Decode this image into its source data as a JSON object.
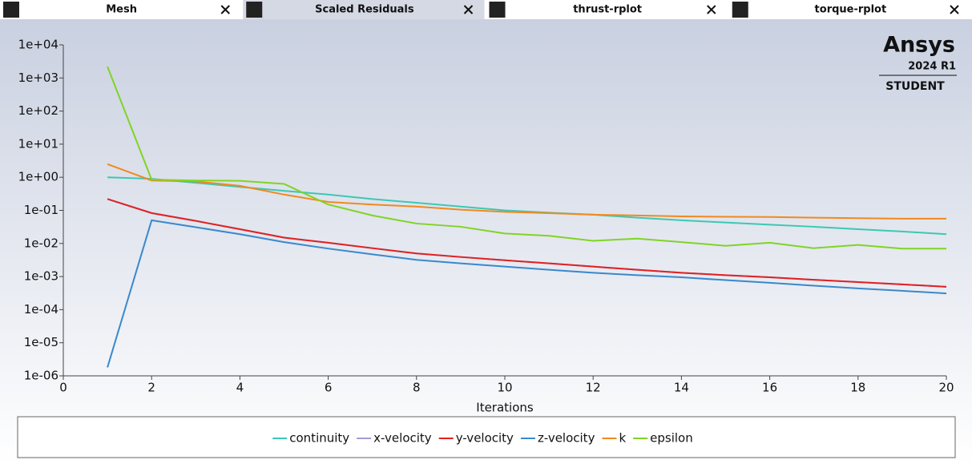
{
  "tabs": [
    {
      "label": "Mesh"
    },
    {
      "label": "Scaled Residuals"
    },
    {
      "label": "thrust-rplot"
    },
    {
      "label": "torque-rplot"
    }
  ],
  "logo": {
    "brand": "Ansys",
    "version": "2024 R1",
    "edition": "STUDENT"
  },
  "chart_data": {
    "type": "line",
    "x_label": "Iterations",
    "log_y": true,
    "x": [
      1,
      2,
      3,
      4,
      5,
      6,
      7,
      8,
      9,
      10,
      11,
      12,
      13,
      14,
      15,
      16,
      17,
      18,
      19,
      20
    ],
    "xlim": [
      0,
      20
    ],
    "xticks": [
      0,
      2,
      4,
      6,
      8,
      10,
      12,
      14,
      16,
      18,
      20
    ],
    "ylim": [
      1e-06,
      10000
    ],
    "yticks": [
      {
        "value": 1e-06,
        "label": "1e-06"
      },
      {
        "value": 1e-05,
        "label": "1e-05"
      },
      {
        "value": 0.0001,
        "label": "1e-04"
      },
      {
        "value": 0.001,
        "label": "1e-03"
      },
      {
        "value": 0.01,
        "label": "1e-02"
      },
      {
        "value": 0.1,
        "label": "1e-01"
      },
      {
        "value": 1,
        "label": "1e+00"
      },
      {
        "value": 10,
        "label": "1e+01"
      },
      {
        "value": 100,
        "label": "1e+02"
      },
      {
        "value": 1000,
        "label": "1e+03"
      },
      {
        "value": 10000,
        "label": "1e+04"
      }
    ],
    "series": [
      {
        "name": "continuity",
        "color": "#3cc8b4",
        "values": [
          1.0,
          0.9,
          0.68,
          0.51,
          0.39,
          0.3,
          0.22,
          0.17,
          0.13,
          0.1,
          0.085,
          0.074,
          0.06,
          0.05,
          0.043,
          0.037,
          0.032,
          0.027,
          0.023,
          0.019
        ]
      },
      {
        "name": "x-velocity",
        "color": "#a898d8",
        "values": [
          0.22,
          0.083,
          0.048,
          0.027,
          0.015,
          0.0105,
          0.0072,
          0.005,
          0.0039,
          0.0031,
          0.0025,
          0.002,
          0.0016,
          0.0013,
          0.0011,
          0.00095,
          0.0008,
          0.00068,
          0.00058,
          0.00049
        ]
      },
      {
        "name": "y-velocity",
        "color": "#e02222",
        "values": [
          0.22,
          0.083,
          0.048,
          0.027,
          0.015,
          0.0105,
          0.0072,
          0.005,
          0.0039,
          0.0031,
          0.0025,
          0.002,
          0.0016,
          0.0013,
          0.0011,
          0.00095,
          0.0008,
          0.00068,
          0.00058,
          0.00049
        ]
      },
      {
        "name": "z-velocity",
        "color": "#3a88cc",
        "values": [
          1.8e-06,
          0.05,
          0.031,
          0.019,
          0.011,
          0.007,
          0.0047,
          0.0032,
          0.0025,
          0.002,
          0.0016,
          0.0013,
          0.0011,
          0.00095,
          0.00078,
          0.00065,
          0.00053,
          0.00044,
          0.00037,
          0.00031
        ]
      },
      {
        "name": "k",
        "color": "#f08a1e",
        "values": [
          2.5,
          0.8,
          0.75,
          0.55,
          0.3,
          0.18,
          0.15,
          0.13,
          0.105,
          0.09,
          0.082,
          0.074,
          0.07,
          0.066,
          0.064,
          0.063,
          0.06,
          0.058,
          0.056,
          0.056
        ]
      },
      {
        "name": "epsilon",
        "color": "#80d424",
        "values": [
          2200,
          0.85,
          0.8,
          0.78,
          0.63,
          0.15,
          0.07,
          0.04,
          0.032,
          0.02,
          0.017,
          0.012,
          0.014,
          0.011,
          0.0085,
          0.0105,
          0.0072,
          0.009,
          0.007,
          0.007
        ]
      }
    ]
  }
}
